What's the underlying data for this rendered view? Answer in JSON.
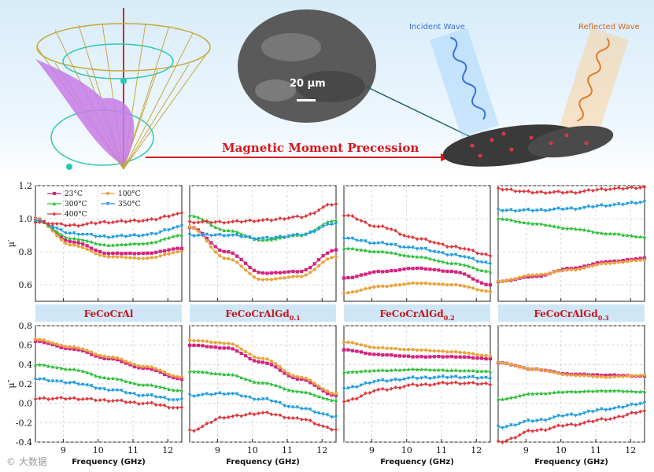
{
  "banner": {
    "title": "Magnetic Moment Precession",
    "scale_bar": "20 μm",
    "incident_label": "Incident Wave",
    "reflected_label": "Reflected Wave",
    "colors": {
      "title": "#d8141b",
      "incident": "#3b6fd8",
      "reflected": "#e07a2a"
    }
  },
  "watermark": "© 大数据",
  "chart_data": {
    "type": "line",
    "x_range": [
      8.2,
      12.4
    ],
    "x_ticks": [
      "9",
      "10",
      "11",
      "12"
    ],
    "xlabel": "Frequency (GHz)",
    "legend": [
      "23°C",
      "100°C",
      "300°C",
      "350°C",
      "400°C"
    ],
    "series_colors": {
      "23": "#d4237f",
      "100": "#e8a33a",
      "300": "#2fbf3a",
      "350": "#1d9be0",
      "400": "#e0353a"
    },
    "rows": [
      {
        "ylabel": "μ′",
        "ylim": [
          0.5,
          1.2
        ],
        "yticks": [
          0.6,
          0.8,
          1.0,
          1.2
        ]
      },
      {
        "ylabel": "μ″",
        "ylim": [
          -0.4,
          0.8
        ],
        "yticks": [
          -0.4,
          -0.2,
          0.0,
          0.2,
          0.4,
          0.6,
          0.8
        ]
      }
    ],
    "panels": [
      {
        "label": "FeCoCrAl",
        "sub": "",
        "mu_real": {
          "23": [
            1.0,
            0.86,
            0.79,
            0.79,
            0.82
          ],
          "100": [
            1.0,
            0.84,
            0.77,
            0.76,
            0.8
          ],
          "300": [
            0.99,
            0.88,
            0.84,
            0.85,
            0.9
          ],
          "350": [
            0.99,
            0.91,
            0.89,
            0.9,
            0.95
          ],
          "400": [
            0.98,
            0.96,
            0.98,
            0.99,
            1.03
          ]
        },
        "mu_imag": {
          "23": [
            0.64,
            0.56,
            0.46,
            0.36,
            0.25
          ],
          "100": [
            0.66,
            0.58,
            0.48,
            0.38,
            0.27
          ],
          "300": [
            0.4,
            0.35,
            0.26,
            0.19,
            0.13
          ],
          "350": [
            0.25,
            0.21,
            0.14,
            0.08,
            0.03
          ],
          "400": [
            0.05,
            0.05,
            0.03,
            0.0,
            -0.05
          ]
        }
      },
      {
        "label": "FeCoCrAlGd",
        "sub": "0.1",
        "mu_real": {
          "23": [
            0.95,
            0.8,
            0.67,
            0.68,
            0.81
          ],
          "100": [
            0.95,
            0.76,
            0.63,
            0.65,
            0.77
          ],
          "300": [
            1.02,
            0.93,
            0.87,
            0.9,
            0.99
          ],
          "350": [
            0.9,
            0.9,
            0.88,
            0.9,
            0.97
          ],
          "400": [
            0.98,
            0.98,
            0.99,
            1.01,
            1.09
          ]
        },
        "mu_imag": {
          "23": [
            0.6,
            0.57,
            0.42,
            0.25,
            0.08
          ],
          "100": [
            0.65,
            0.62,
            0.46,
            0.27,
            0.1
          ],
          "300": [
            0.33,
            0.3,
            0.21,
            0.12,
            0.03
          ],
          "350": [
            0.08,
            0.1,
            0.04,
            -0.05,
            -0.14
          ],
          "400": [
            -0.28,
            -0.14,
            -0.1,
            -0.16,
            -0.27
          ]
        }
      },
      {
        "label": "FeCoCrAlGd",
        "sub": "0.2",
        "mu_real": {
          "23": [
            0.64,
            0.68,
            0.7,
            0.68,
            0.6
          ],
          "100": [
            0.55,
            0.59,
            0.61,
            0.6,
            0.56
          ],
          "300": [
            0.82,
            0.8,
            0.77,
            0.73,
            0.68
          ],
          "350": [
            0.88,
            0.85,
            0.82,
            0.78,
            0.73
          ],
          "400": [
            1.02,
            0.95,
            0.88,
            0.83,
            0.78
          ]
        },
        "mu_imag": {
          "23": [
            0.55,
            0.5,
            0.48,
            0.48,
            0.46
          ],
          "100": [
            0.63,
            0.57,
            0.55,
            0.53,
            0.49
          ],
          "300": [
            0.32,
            0.34,
            0.35,
            0.34,
            0.33
          ],
          "350": [
            0.15,
            0.23,
            0.26,
            0.27,
            0.26
          ],
          "400": [
            0.02,
            0.14,
            0.19,
            0.21,
            0.2
          ]
        }
      },
      {
        "label": "FeCoCrAlGd",
        "sub": "0.3",
        "mu_real": {
          "23": [
            0.62,
            0.65,
            0.7,
            0.74,
            0.76
          ],
          "100": [
            0.62,
            0.66,
            0.69,
            0.73,
            0.75
          ],
          "300": [
            1.0,
            0.97,
            0.94,
            0.91,
            0.89
          ],
          "350": [
            1.05,
            1.05,
            1.06,
            1.08,
            1.1
          ],
          "400": [
            1.18,
            1.16,
            1.16,
            1.18,
            1.19
          ]
        },
        "mu_imag": {
          "23": [
            0.42,
            0.35,
            0.3,
            0.29,
            0.28
          ],
          "100": [
            0.42,
            0.35,
            0.29,
            0.27,
            0.29
          ],
          "300": [
            0.04,
            0.1,
            0.12,
            0.13,
            0.12
          ],
          "350": [
            -0.25,
            -0.18,
            -0.12,
            -0.06,
            0.0
          ],
          "400": [
            -0.4,
            -0.28,
            -0.22,
            -0.16,
            -0.08
          ]
        }
      }
    ]
  }
}
